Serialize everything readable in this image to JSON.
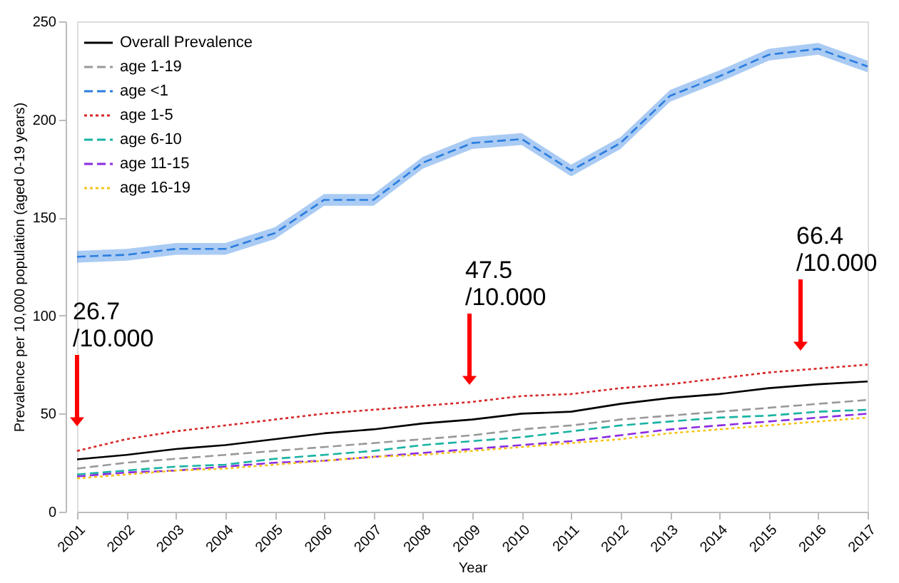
{
  "chart_data": {
    "type": "line",
    "xlabel": "Year",
    "ylabel": "Prevalence per 10,000 population (aged 0-19 years)",
    "x": [
      2001,
      2002,
      2003,
      2004,
      2005,
      2006,
      2007,
      2008,
      2009,
      2010,
      2011,
      2012,
      2013,
      2014,
      2015,
      2016,
      2017
    ],
    "xlim": [
      2001,
      2017
    ],
    "xticks": [
      2001,
      2002,
      2003,
      2004,
      2005,
      2006,
      2007,
      2008,
      2009,
      2010,
      2011,
      2012,
      2013,
      2014,
      2015,
      2016,
      2017
    ],
    "ylim": [
      0,
      250
    ],
    "yticks": [
      0,
      50,
      100,
      150,
      200,
      250
    ],
    "grid": false,
    "legend": "top left",
    "marker": "none",
    "series": [
      {
        "name": "Overall Prevalence",
        "color": "#000000",
        "line_style": "solid",
        "values": [
          26.7,
          29,
          32,
          34,
          37,
          40,
          42,
          45,
          47,
          50,
          51,
          55,
          58,
          60,
          63,
          65,
          66.4
        ]
      },
      {
        "name": "age 1-19",
        "color": "#999999",
        "line_style": "dashed",
        "values": [
          22,
          25,
          27,
          29,
          31,
          33,
          35,
          37,
          39,
          42,
          44,
          47,
          49,
          51,
          53,
          55,
          57
        ]
      },
      {
        "name": "age <1",
        "color": "#2b7de0",
        "line_style": "dashed",
        "values": [
          130,
          131,
          134,
          134,
          142,
          159,
          159,
          178,
          188,
          190,
          174,
          188,
          212,
          222,
          233,
          236,
          227
        ],
        "lower": [
          127,
          128,
          131,
          131,
          139,
          156,
          156,
          175,
          185,
          187,
          171,
          185,
          209,
          219,
          230,
          233,
          224
        ],
        "upper": [
          133,
          134,
          137,
          137,
          145,
          162,
          162,
          181,
          191,
          193,
          177,
          191,
          215,
          225,
          236,
          239,
          230
        ]
      },
      {
        "name": "age 1-5",
        "color": "#d62728",
        "line_style": "dotted",
        "values": [
          31,
          37,
          41,
          44,
          47,
          50,
          52,
          54,
          56,
          59,
          60,
          63,
          65,
          68,
          71,
          73,
          75
        ]
      },
      {
        "name": "age 6-10",
        "color": "#17b3a3",
        "line_style": "dashed",
        "values": [
          19,
          21,
          23,
          24,
          27,
          29,
          31,
          34,
          36,
          38,
          41,
          44,
          46,
          48,
          49,
          51,
          52
        ]
      },
      {
        "name": "age 11-15",
        "color": "#8a2be2",
        "line_style": "dashed",
        "values": [
          18,
          20,
          21,
          23,
          25,
          26,
          28,
          30,
          32,
          34,
          36,
          39,
          42,
          44,
          46,
          48,
          50
        ]
      },
      {
        "name": "age 16-19",
        "color": "#f5c518",
        "line_style": "dotted",
        "values": [
          17,
          19,
          21,
          22,
          24,
          26,
          28,
          29,
          31,
          33,
          35,
          37,
          40,
          42,
          44,
          46,
          48
        ]
      }
    ],
    "annotations": [
      "26.7\n/10.000",
      "47.5\n/10.000",
      "66.4\n/10.000"
    ]
  }
}
